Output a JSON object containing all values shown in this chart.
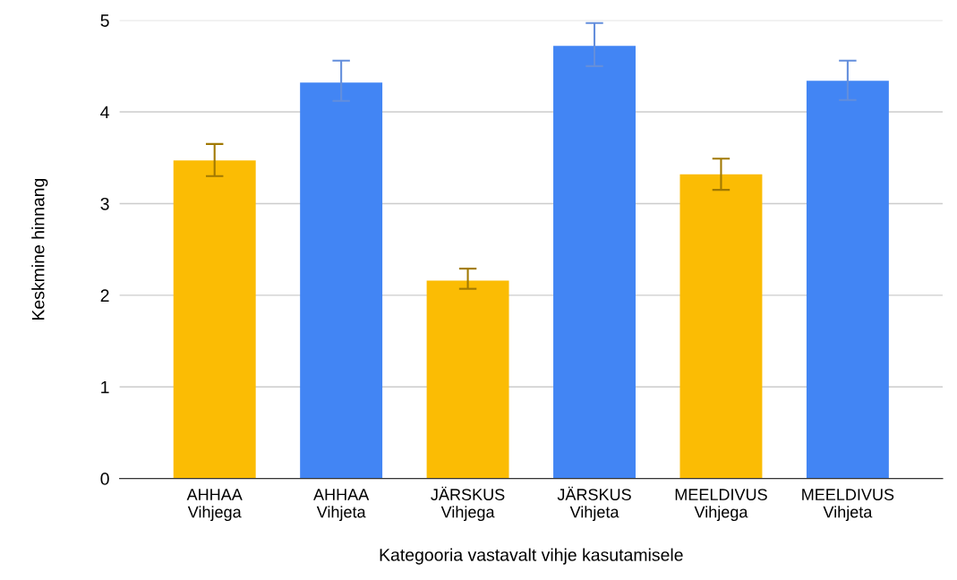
{
  "chart_data": {
    "type": "bar",
    "xlabel": "Kategooria vastavalt vihje kasutamisele",
    "ylabel": "Keskmine hinnang",
    "categories": [
      "AHHAA\nVihjega",
      "AHHAA\nVihjeta",
      "JÄRSKUS\nVihjega",
      "JÄRSKUS\nVihjeta",
      "MEELDIVUS\nVihjega",
      "MEELDIVUS\nVihjeta"
    ],
    "values": [
      3.47,
      4.32,
      2.16,
      4.72,
      3.32,
      4.34
    ],
    "errors": [
      [
        3.3,
        3.65
      ],
      [
        4.12,
        4.56
      ],
      [
        2.07,
        2.29
      ],
      [
        4.5,
        4.97
      ],
      [
        3.15,
        3.49
      ],
      [
        4.13,
        4.56
      ]
    ],
    "colors": [
      "#fbbc04",
      "#4285f4",
      "#fbbc04",
      "#4285f4",
      "#fbbc04",
      "#4285f4"
    ],
    "ylim": [
      0,
      5
    ],
    "yticks": [
      0,
      1,
      2,
      3,
      4,
      5
    ],
    "grid": "y",
    "legend": false
  }
}
